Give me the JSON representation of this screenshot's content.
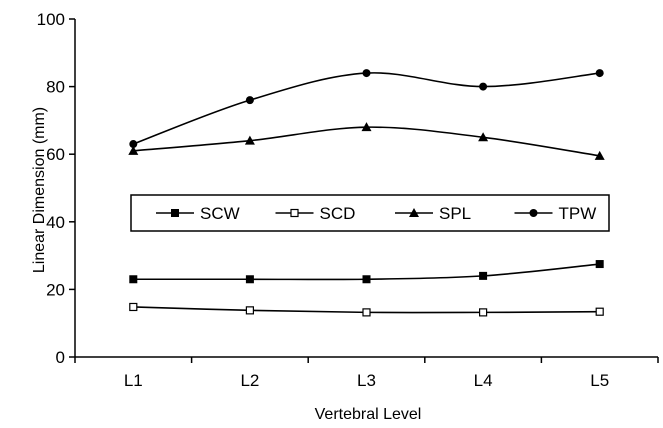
{
  "chart_data": {
    "type": "line",
    "title": "",
    "xlabel": "Vertebral Level",
    "ylabel": "Linear Dimension (mm)",
    "categories": [
      "L1",
      "L2",
      "L3",
      "L4",
      "L5"
    ],
    "ylim": [
      0,
      100
    ],
    "yticks": [
      "0",
      "20",
      "40",
      "60",
      "80",
      "100"
    ],
    "grid": false,
    "smooth": true,
    "legend_position": "center",
    "series": [
      {
        "name": "SCW",
        "marker": "filled-square",
        "values": [
          23,
          23,
          23,
          24,
          27.5
        ]
      },
      {
        "name": "SCD",
        "marker": "open-square",
        "values": [
          14.8,
          13.8,
          13.2,
          13.2,
          13.4
        ]
      },
      {
        "name": "SPL",
        "marker": "filled-triangle",
        "values": [
          61,
          64,
          68,
          65,
          59.5
        ]
      },
      {
        "name": "TPW",
        "marker": "filled-circle",
        "values": [
          63,
          76,
          84,
          80,
          84
        ]
      }
    ],
    "colors": {
      "line": "#000000",
      "background": "#ffffff"
    }
  }
}
